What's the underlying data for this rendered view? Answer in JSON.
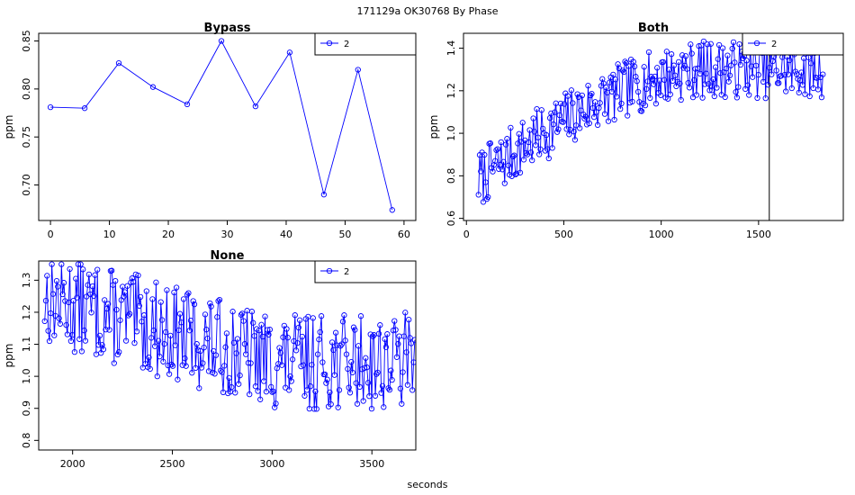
{
  "figure": {
    "suptitle": "171129a    OK30768   By Phase",
    "xlabel": "seconds"
  },
  "colors": {
    "series": "#0000ff",
    "axis": "#000000",
    "background": "#ffffff"
  },
  "chart_data": [
    {
      "type": "line",
      "title": "Bypass",
      "ylabel": "ppm",
      "xlabel": "",
      "xlim": [
        -2,
        62
      ],
      "ylim": [
        0.663,
        0.858
      ],
      "xticks": [
        0,
        10,
        20,
        30,
        40,
        50,
        60
      ],
      "xtick_labels": [
        "0",
        "10",
        "20",
        "30",
        "40",
        "50",
        "60"
      ],
      "yticks": [
        0.7,
        0.75,
        0.8,
        0.85
      ],
      "ytick_labels": [
        "0.70",
        "0.75",
        "0.80",
        "0.85"
      ],
      "legend": {
        "label": "2",
        "placement": "top-right"
      },
      "series": [
        {
          "name": "2",
          "x": [
            0,
            5.8,
            11.6,
            17.4,
            23.2,
            29,
            34.8,
            40.6,
            46.4,
            52.2,
            58
          ],
          "y": [
            0.781,
            0.78,
            0.827,
            0.802,
            0.784,
            0.85,
            0.782,
            0.838,
            0.69,
            0.82,
            0.674
          ]
        }
      ]
    },
    {
      "type": "line",
      "title": "Both",
      "ylabel": "ppm",
      "xlabel": "",
      "xlim": [
        -15,
        1935
      ],
      "ylim": [
        0.59,
        1.47
      ],
      "xticks": [
        0,
        500,
        1000,
        1500
      ],
      "xtick_labels": [
        "0",
        "500",
        "1000",
        "1500"
      ],
      "yticks": [
        0.6,
        0.8,
        1.0,
        1.2,
        1.4
      ],
      "ytick_labels": [
        "0.6",
        "0.8",
        "1.0",
        "1.2",
        "1.4"
      ],
      "legend": {
        "label": "2",
        "placement": "top-right"
      },
      "vline": 1555,
      "generated": {
        "n": 290,
        "x_start": 62,
        "x_end": 1830,
        "seed": 7,
        "model": "rising trend 0.78 -> 1.30 with noise"
      },
      "series": [
        {
          "name": "2",
          "x": [],
          "y": []
        }
      ]
    },
    {
      "type": "line",
      "title": "None",
      "ylabel": "ppm",
      "xlabel": "",
      "xlim": [
        1830,
        3720
      ],
      "ylim": [
        0.77,
        1.36
      ],
      "xticks": [
        2000,
        2500,
        3000,
        3500
      ],
      "xtick_labels": [
        "2000",
        "2500",
        "3000",
        "3500"
      ],
      "yticks": [
        0.8,
        0.9,
        1.0,
        1.1,
        1.2,
        1.3
      ],
      "ytick_labels": [
        "0.8",
        "0.9",
        "1.0",
        "1.1",
        "1.2",
        "1.3"
      ],
      "legend": {
        "label": "2",
        "placement": "top-right"
      },
      "generated": {
        "n": 310,
        "x_start": 1860,
        "x_end": 3715,
        "seed": 13,
        "model": "declining trend 1.25 -> 1.04 with noise"
      },
      "series": [
        {
          "name": "2",
          "x": [],
          "y": []
        }
      ]
    }
  ]
}
